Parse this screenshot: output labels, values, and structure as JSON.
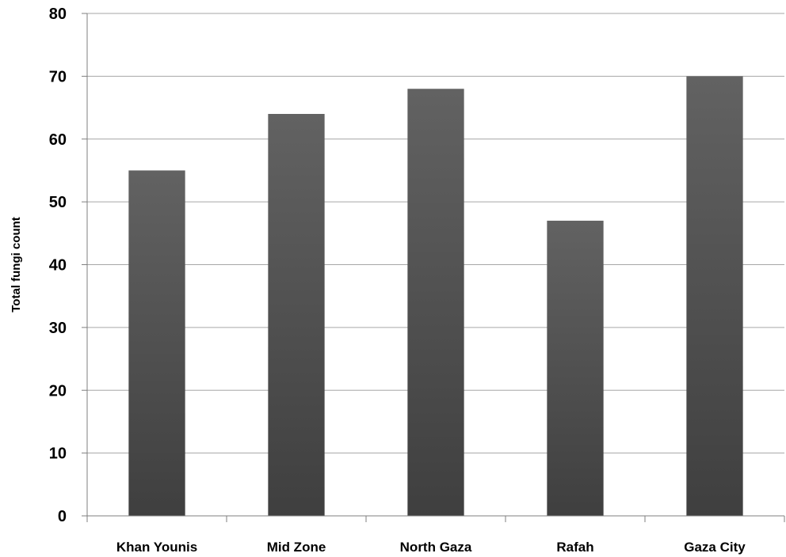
{
  "chart_data": {
    "type": "bar",
    "title": "",
    "xlabel": "",
    "ylabel": "Total fungi count",
    "categories": [
      "Khan Younis",
      "Mid Zone",
      "North Gaza",
      "Rafah",
      "Gaza City"
    ],
    "values": [
      55,
      64,
      68,
      47,
      70
    ],
    "ylim": [
      0,
      80
    ],
    "yticks": [
      0,
      10,
      20,
      30,
      40,
      50,
      60,
      70,
      80
    ],
    "grid": true,
    "legend": "none",
    "colors": {
      "bar_top": "#626262",
      "bar_bottom": "#3f3f3f",
      "grid": "#a6a6a6",
      "axis": "#7f7f7f"
    }
  }
}
